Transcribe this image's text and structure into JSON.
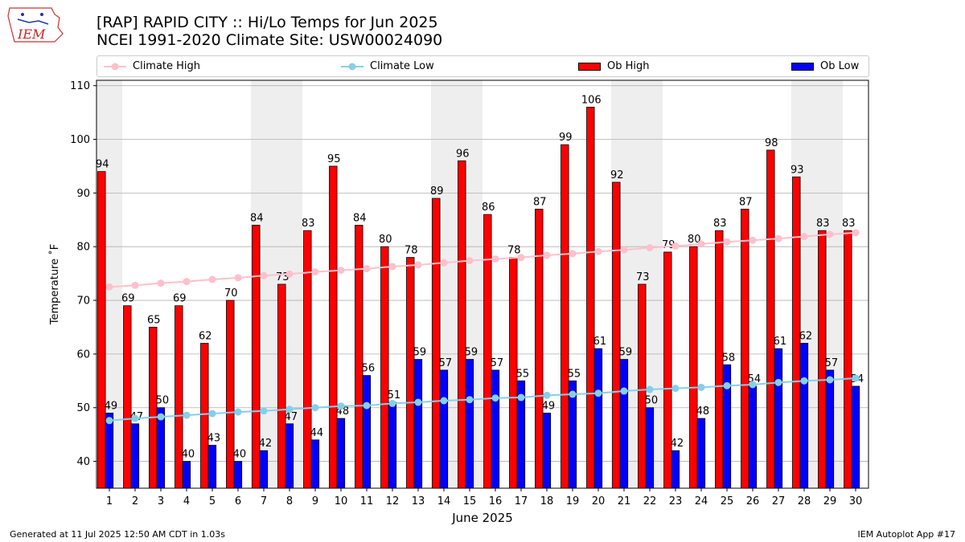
{
  "header": {
    "title_line1": "[RAP] RAPID CITY :: Hi/Lo Temps for Jun 2025",
    "title_line2": "NCEI 1991-2020 Climate Site: USW00024090"
  },
  "logo": {
    "text": "IEM"
  },
  "legend": {
    "climate_high": "Climate High",
    "climate_low": "Climate Low",
    "ob_high": "Ob High",
    "ob_low": "Ob Low"
  },
  "footer": {
    "left": "Generated at 11 Jul 2025 12:50 AM CDT in 1.03s",
    "right": "IEM Autoplot App #17"
  },
  "colors": {
    "ob_high": "#ff0000",
    "ob_low": "#0000ff",
    "climate_high": "#ffc0cb",
    "climate_low": "#87ceeb",
    "weekend_shade": "#eeeeee",
    "grid": "#b0b0b0"
  },
  "chart_data": {
    "type": "bar",
    "xlabel": "June 2025",
    "ylabel": "Temperature ˚F",
    "ylim": [
      35,
      111
    ],
    "yticks": [
      40,
      50,
      60,
      70,
      80,
      90,
      100,
      110
    ],
    "grid": "horizontal",
    "legend_position": "top",
    "categories": [
      "1",
      "2",
      "3",
      "4",
      "5",
      "6",
      "7",
      "8",
      "9",
      "10",
      "11",
      "12",
      "13",
      "14",
      "15",
      "16",
      "17",
      "18",
      "19",
      "20",
      "21",
      "22",
      "23",
      "24",
      "25",
      "26",
      "27",
      "28",
      "29",
      "30"
    ],
    "weekend_days": [
      1,
      7,
      8,
      14,
      15,
      21,
      22,
      28,
      29
    ],
    "series": [
      {
        "name": "Ob High",
        "kind": "bar",
        "values": [
          94,
          69,
          65,
          69,
          62,
          70,
          84,
          73,
          83,
          95,
          84,
          80,
          78,
          89,
          96,
          86,
          78,
          87,
          99,
          106,
          92,
          73,
          79,
          80,
          83,
          87,
          98,
          93,
          83,
          83
        ]
      },
      {
        "name": "Ob Low",
        "kind": "bar",
        "values": [
          49,
          47,
          50,
          40,
          43,
          40,
          42,
          47,
          44,
          48,
          56,
          51,
          59,
          57,
          59,
          57,
          55,
          49,
          55,
          61,
          59,
          50,
          42,
          48,
          58,
          54,
          61,
          62,
          57,
          54
        ]
      },
      {
        "name": "Climate High",
        "kind": "line",
        "values": [
          72.5,
          72.8,
          73.2,
          73.5,
          73.9,
          74.2,
          74.6,
          74.9,
          75.3,
          75.6,
          75.9,
          76.3,
          76.6,
          77.0,
          77.4,
          77.7,
          78.0,
          78.4,
          78.7,
          79.1,
          79.4,
          79.8,
          80.1,
          80.5,
          80.9,
          81.2,
          81.5,
          81.9,
          82.3,
          82.6
        ]
      },
      {
        "name": "Climate Low",
        "kind": "line",
        "values": [
          47.6,
          48.0,
          48.3,
          48.6,
          48.9,
          49.2,
          49.4,
          49.7,
          50.0,
          50.3,
          50.4,
          50.8,
          51.0,
          51.3,
          51.5,
          51.8,
          51.9,
          52.3,
          52.5,
          52.7,
          53.1,
          53.4,
          53.6,
          53.8,
          54.1,
          54.3,
          54.7,
          55.0,
          55.2,
          55.5
        ]
      }
    ]
  }
}
